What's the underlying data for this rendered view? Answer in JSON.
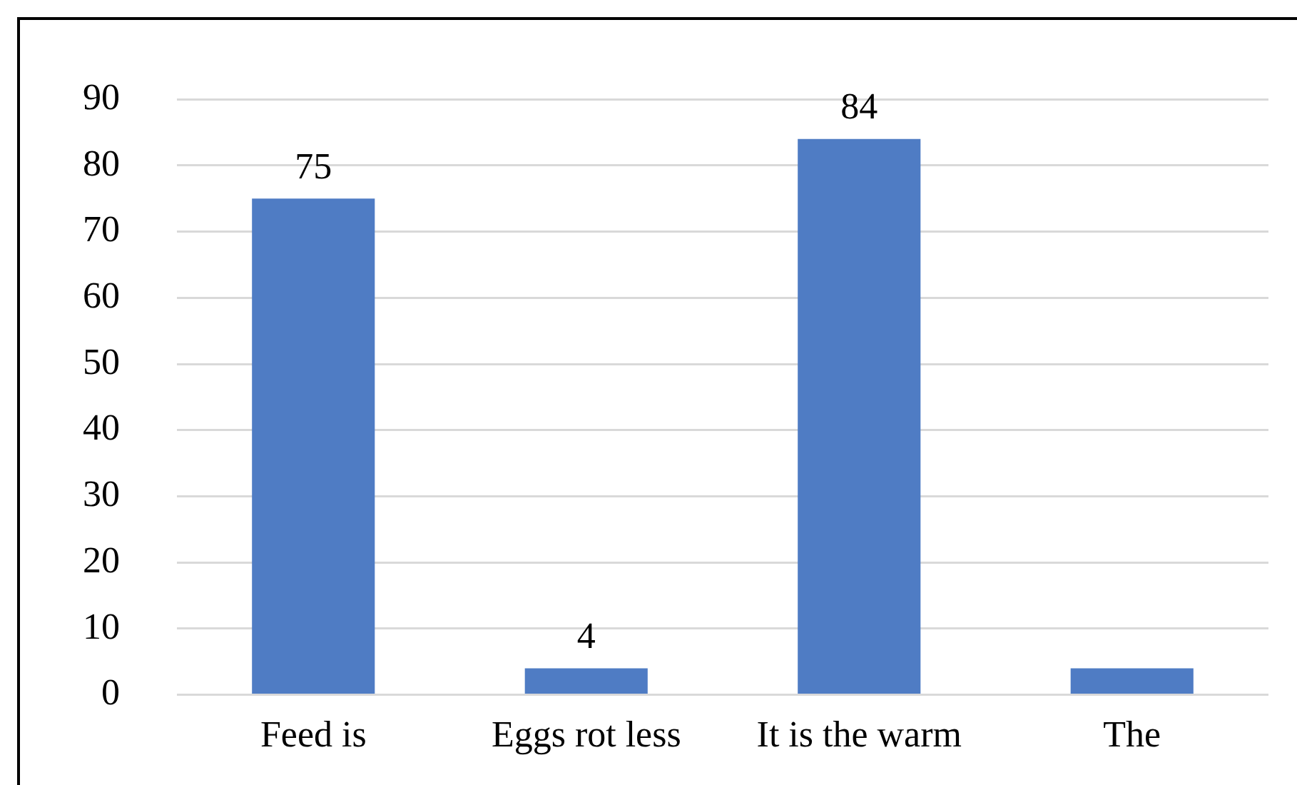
{
  "chart_data": {
    "type": "bar",
    "categories": [
      "Feed is",
      "Eggs rot less",
      "It is the warm",
      "The"
    ],
    "values": [
      75,
      4,
      84,
      4
    ],
    "value_labels": [
      "75",
      "4",
      "84",
      null
    ],
    "color": "#4f7cc4",
    "ylim": [
      0,
      90
    ],
    "yticks": [
      0,
      10,
      20,
      30,
      40,
      50,
      60,
      70,
      80,
      90
    ],
    "grid": "y"
  }
}
